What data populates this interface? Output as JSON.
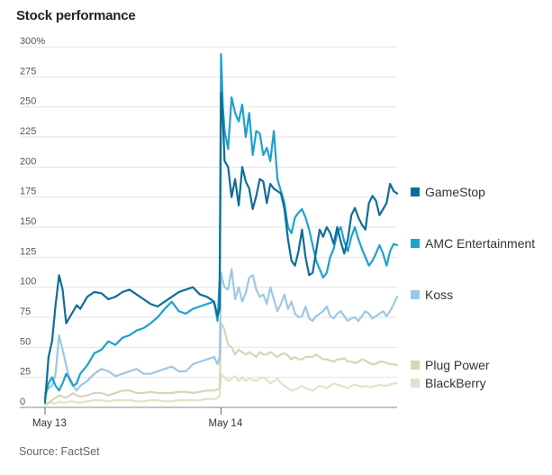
{
  "header": {
    "title": "Stock performance"
  },
  "footer": {
    "source": "Source: FactSet"
  },
  "chart_data": {
    "type": "line",
    "title": "Stock performance",
    "y_ticks": [
      "300%",
      "275",
      "250",
      "225",
      "200",
      "175",
      "150",
      "125",
      "100",
      "75",
      "50",
      "25",
      "0"
    ],
    "y_tick_values": [
      300,
      275,
      250,
      225,
      200,
      175,
      150,
      125,
      100,
      75,
      50,
      25,
      0
    ],
    "ylim": [
      0,
      300
    ],
    "x_ticks": [
      "May 13",
      "May 14"
    ],
    "x_tick_positions": [
      0,
      50
    ],
    "xlim": [
      0,
      100
    ],
    "grid": true,
    "legend_placement": "right",
    "series": [
      {
        "name": "GameStop",
        "color": "#0e6e96",
        "x": [
          0,
          1,
          2,
          3,
          4,
          5,
          6,
          7,
          8,
          9,
          10,
          12,
          14,
          16,
          18,
          20,
          22,
          24,
          26,
          28,
          30,
          32,
          34,
          36,
          38,
          40,
          42,
          44,
          46,
          48,
          49,
          49.6,
          50,
          50.5,
          51,
          52,
          53,
          54,
          55,
          56,
          57,
          58,
          59,
          60,
          61,
          62,
          63,
          64,
          65,
          66,
          67,
          68,
          69,
          70,
          71,
          72,
          73,
          74,
          75,
          76,
          77,
          78,
          79,
          80,
          81,
          82,
          83,
          84,
          85,
          86,
          87,
          88,
          89,
          90,
          91,
          92,
          93,
          94,
          95,
          96,
          97,
          98,
          99,
          100
        ],
        "y": [
          4,
          42,
          55,
          85,
          110,
          98,
          70,
          75,
          80,
          85,
          82,
          92,
          96,
          95,
          90,
          92,
          96,
          98,
          94,
          90,
          86,
          84,
          88,
          92,
          96,
          98,
          100,
          94,
          92,
          88,
          76,
          82,
          262,
          240,
          205,
          200,
          175,
          190,
          168,
          200,
          188,
          182,
          165,
          176,
          190,
          188,
          170,
          186,
          182,
          180,
          178,
          165,
          140,
          122,
          118,
          130,
          148,
          125,
          110,
          112,
          130,
          148,
          142,
          150,
          145,
          136,
          150,
          138,
          128,
          140,
          160,
          166,
          158,
          152,
          148,
          170,
          176,
          172,
          160,
          165,
          170,
          186,
          180,
          178
        ]
      },
      {
        "name": "AMC Entertainment",
        "color": "#1ea1cf",
        "x": [
          0,
          1,
          2,
          3,
          4,
          5,
          6,
          7,
          8,
          9,
          10,
          12,
          14,
          16,
          18,
          20,
          22,
          24,
          26,
          28,
          30,
          32,
          34,
          36,
          38,
          40,
          42,
          44,
          46,
          48,
          49,
          49.6,
          50,
          50.5,
          51,
          52,
          53,
          54,
          55,
          56,
          57,
          58,
          59,
          60,
          61,
          62,
          63,
          64,
          65,
          66,
          67,
          68,
          69,
          70,
          71,
          72,
          73,
          74,
          75,
          76,
          77,
          78,
          79,
          80,
          81,
          82,
          83,
          84,
          85,
          86,
          87,
          88,
          89,
          90,
          91,
          92,
          93,
          94,
          95,
          96,
          97,
          98,
          99,
          100
        ],
        "y": [
          8,
          20,
          25,
          18,
          14,
          20,
          28,
          24,
          18,
          20,
          28,
          35,
          45,
          48,
          55,
          52,
          58,
          60,
          64,
          66,
          70,
          75,
          82,
          88,
          80,
          78,
          82,
          84,
          86,
          88,
          72,
          108,
          294,
          250,
          230,
          215,
          258,
          245,
          238,
          252,
          225,
          245,
          210,
          230,
          228,
          210,
          216,
          205,
          230,
          190,
          180,
          170,
          150,
          145,
          158,
          162,
          165,
          158,
          148,
          135,
          122,
          115,
          108,
          112,
          125,
          132,
          145,
          150,
          138,
          130,
          142,
          150,
          140,
          132,
          125,
          118,
          122,
          128,
          135,
          128,
          118,
          130,
          136,
          135
        ]
      },
      {
        "name": "Koss",
        "color": "#9cc8e6",
        "x": [
          0,
          1,
          2,
          3,
          4,
          5,
          6,
          7,
          8,
          9,
          10,
          12,
          14,
          16,
          18,
          20,
          22,
          24,
          26,
          28,
          30,
          32,
          34,
          36,
          38,
          40,
          42,
          44,
          46,
          48,
          49,
          49.6,
          50,
          50.5,
          51,
          52,
          53,
          54,
          55,
          56,
          57,
          58,
          59,
          60,
          61,
          62,
          63,
          64,
          65,
          66,
          67,
          68,
          69,
          70,
          71,
          72,
          73,
          74,
          75,
          76,
          77,
          78,
          79,
          80,
          81,
          82,
          83,
          84,
          85,
          86,
          87,
          88,
          89,
          90,
          91,
          92,
          93,
          94,
          95,
          96,
          97,
          98,
          99,
          100
        ],
        "y": [
          12,
          16,
          18,
          28,
          60,
          48,
          35,
          22,
          18,
          14,
          18,
          22,
          28,
          32,
          30,
          26,
          28,
          30,
          32,
          28,
          28,
          30,
          32,
          34,
          30,
          30,
          36,
          38,
          40,
          42,
          36,
          42,
          112,
          105,
          100,
          98,
          115,
          90,
          100,
          88,
          95,
          108,
          110,
          98,
          92,
          94,
          86,
          100,
          90,
          80,
          86,
          94,
          82,
          88,
          78,
          75,
          76,
          84,
          74,
          72,
          76,
          78,
          80,
          84,
          76,
          74,
          78,
          80,
          76,
          72,
          74,
          75,
          72,
          76,
          80,
          78,
          74,
          76,
          78,
          80,
          76,
          80,
          86,
          92
        ]
      },
      {
        "name": "Plug Power",
        "color": "#d6d6b8",
        "x": [
          0,
          1,
          2,
          3,
          4,
          5,
          6,
          7,
          8,
          9,
          10,
          12,
          14,
          16,
          18,
          20,
          22,
          24,
          26,
          28,
          30,
          32,
          34,
          36,
          38,
          40,
          42,
          44,
          46,
          48,
          49,
          49.6,
          50,
          50.5,
          51,
          52,
          53,
          54,
          55,
          56,
          57,
          58,
          59,
          60,
          61,
          62,
          63,
          64,
          65,
          66,
          67,
          68,
          69,
          70,
          71,
          72,
          73,
          74,
          75,
          76,
          77,
          78,
          79,
          80,
          81,
          82,
          83,
          84,
          85,
          86,
          87,
          88,
          89,
          90,
          91,
          92,
          93,
          94,
          95,
          96,
          97,
          98,
          99,
          100
        ],
        "y": [
          2,
          4,
          6,
          8,
          10,
          9,
          8,
          10,
          12,
          10,
          9,
          10,
          12,
          12,
          10,
          12,
          14,
          14,
          12,
          12,
          13,
          12,
          12,
          12,
          13,
          13,
          12,
          13,
          14,
          14,
          15,
          16,
          70,
          68,
          64,
          52,
          50,
          44,
          48,
          46,
          44,
          46,
          44,
          42,
          46,
          44,
          44,
          46,
          44,
          42,
          44,
          45,
          43,
          40,
          42,
          40,
          40,
          42,
          42,
          42,
          44,
          42,
          40,
          40,
          39,
          38,
          40,
          40,
          41,
          38,
          38,
          37,
          38,
          40,
          39,
          37,
          36,
          36,
          38,
          38,
          37,
          36,
          36,
          35
        ]
      },
      {
        "name": "BlackBerry",
        "color": "#e2e2cb",
        "x": [
          0,
          1,
          2,
          3,
          4,
          5,
          6,
          7,
          8,
          9,
          10,
          12,
          14,
          16,
          18,
          20,
          22,
          24,
          26,
          28,
          30,
          32,
          34,
          36,
          38,
          40,
          42,
          44,
          46,
          48,
          49,
          49.6,
          50,
          50.5,
          51,
          52,
          53,
          54,
          55,
          56,
          57,
          58,
          59,
          60,
          61,
          62,
          63,
          64,
          65,
          66,
          67,
          68,
          69,
          70,
          71,
          72,
          73,
          74,
          75,
          76,
          77,
          78,
          79,
          80,
          81,
          82,
          83,
          84,
          85,
          86,
          87,
          88,
          89,
          90,
          91,
          92,
          93,
          94,
          95,
          96,
          97,
          98,
          99,
          100
        ],
        "y": [
          3,
          4,
          4,
          3,
          5,
          4,
          4,
          5,
          5,
          4,
          4,
          5,
          6,
          6,
          5,
          6,
          6,
          6,
          5,
          5,
          6,
          6,
          5,
          5,
          6,
          6,
          6,
          6,
          7,
          7,
          8,
          10,
          28,
          26,
          25,
          22,
          24,
          26,
          22,
          25,
          22,
          24,
          23,
          22,
          24,
          25,
          23,
          20,
          22,
          24,
          20,
          18,
          16,
          14,
          15,
          16,
          18,
          16,
          15,
          14,
          16,
          18,
          17,
          16,
          18,
          20,
          19,
          18,
          17,
          16,
          18,
          19,
          18,
          17,
          18,
          17,
          17,
          18,
          19,
          18,
          18,
          19,
          20,
          20
        ]
      }
    ]
  }
}
